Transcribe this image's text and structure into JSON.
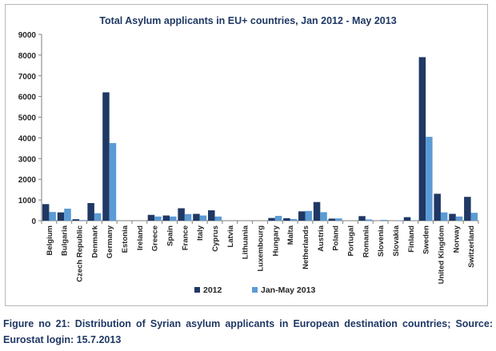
{
  "chart_data": {
    "type": "bar",
    "title": "Total Asylum applicants in EU+ countries, Jan 2012 - May 2013",
    "xlabel": "",
    "ylabel": "",
    "ylim": [
      0,
      9000
    ],
    "yticks": [
      0,
      1000,
      2000,
      3000,
      4000,
      5000,
      6000,
      7000,
      8000,
      9000
    ],
    "grid": false,
    "legend_position": "bottom",
    "categories": [
      "Belgium",
      "Bulgaria",
      "Czech Republic",
      "Denmark",
      "Germany",
      "Estonia",
      "Ireland",
      "Greece",
      "Spain",
      "France",
      "Italy",
      "Cyprus",
      "Latvia",
      "Lithuania",
      "Luxembourg",
      "Hungary",
      "Malta",
      "Netherlands",
      "Austria",
      "Poland",
      "Portugal",
      "Romania",
      "Slovenia",
      "Slovakia",
      "Finland",
      "Sweden",
      "United Kingdom",
      "Norway",
      "Switzerland"
    ],
    "series": [
      {
        "name": "2012",
        "color": "#1f3864",
        "values": [
          800,
          400,
          70,
          850,
          6200,
          0,
          0,
          280,
          250,
          600,
          330,
          500,
          0,
          0,
          0,
          130,
          120,
          450,
          900,
          100,
          0,
          220,
          0,
          0,
          170,
          7900,
          1300,
          330,
          1150
        ]
      },
      {
        "name": "Jan-May 2013",
        "color": "#5b9bd5",
        "values": [
          420,
          580,
          30,
          360,
          3750,
          0,
          0,
          200,
          200,
          320,
          250,
          200,
          0,
          0,
          0,
          230,
          80,
          470,
          410,
          110,
          0,
          60,
          40,
          20,
          20,
          4050,
          400,
          200,
          380
        ]
      }
    ]
  },
  "caption": "Figure no 21: Distribution of Syrian asylum applicants in European destination countries; Source: Eurostat login: 15.7.2013"
}
